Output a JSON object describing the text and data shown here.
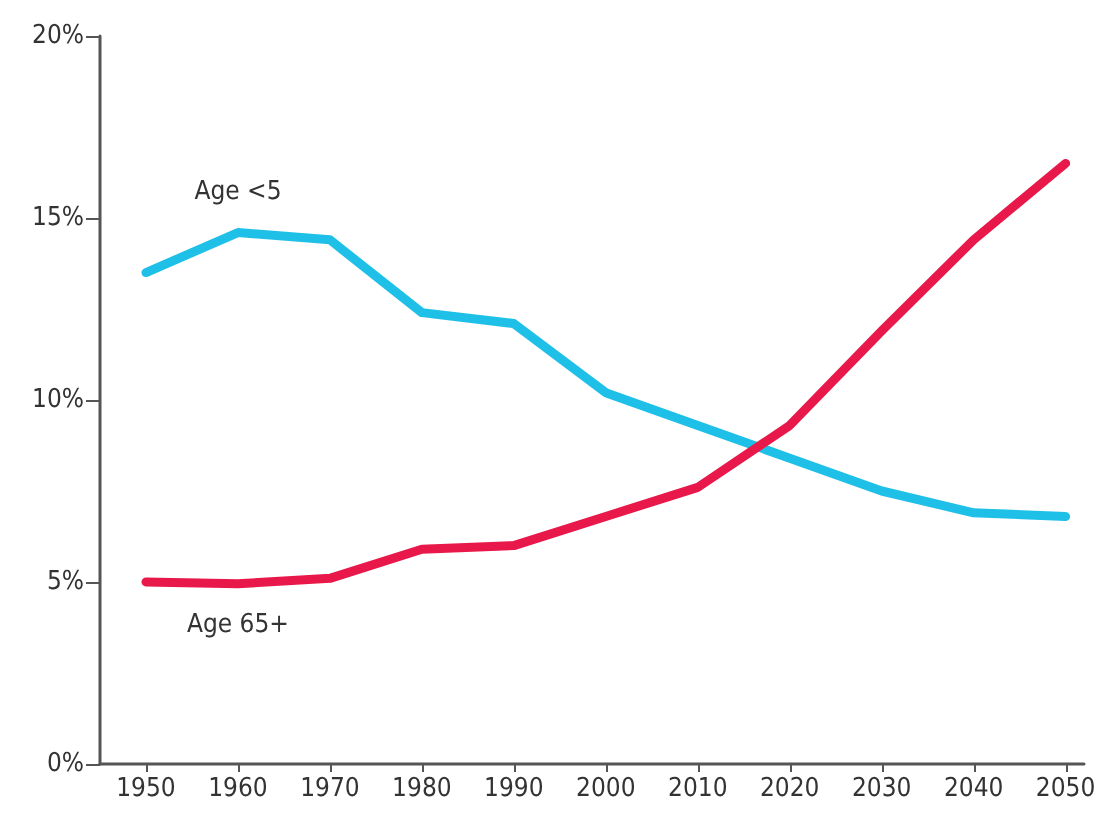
{
  "chart_data": {
    "type": "line",
    "x": [
      1950,
      1960,
      1970,
      1980,
      1990,
      2000,
      2010,
      2020,
      2030,
      2040,
      2050
    ],
    "series": [
      {
        "name": "Age <5",
        "color": "#1ec0e8",
        "values": [
          13.5,
          14.6,
          14.4,
          12.4,
          12.1,
          10.2,
          9.3,
          8.4,
          7.5,
          6.9,
          6.8
        ]
      },
      {
        "name": "Age 65+",
        "color": "#e8184a",
        "values": [
          5.0,
          4.95,
          5.1,
          5.9,
          6.0,
          6.8,
          7.6,
          9.3,
          11.9,
          14.4,
          16.5
        ]
      }
    ],
    "xlim": [
      1945,
      2052
    ],
    "xticks": [
      1950,
      1960,
      1970,
      1980,
      1990,
      2000,
      2010,
      2020,
      2030,
      2040,
      2050
    ],
    "ylim": [
      0,
      20
    ],
    "yticks": [
      {
        "value": 0,
        "label": "0%"
      },
      {
        "value": 5,
        "label": "5%"
      },
      {
        "value": 10,
        "label": "10%"
      },
      {
        "value": 15,
        "label": "15%"
      },
      {
        "value": 20,
        "label": "20%"
      }
    ],
    "grid": false,
    "marker": "none",
    "line_style": "solid"
  }
}
